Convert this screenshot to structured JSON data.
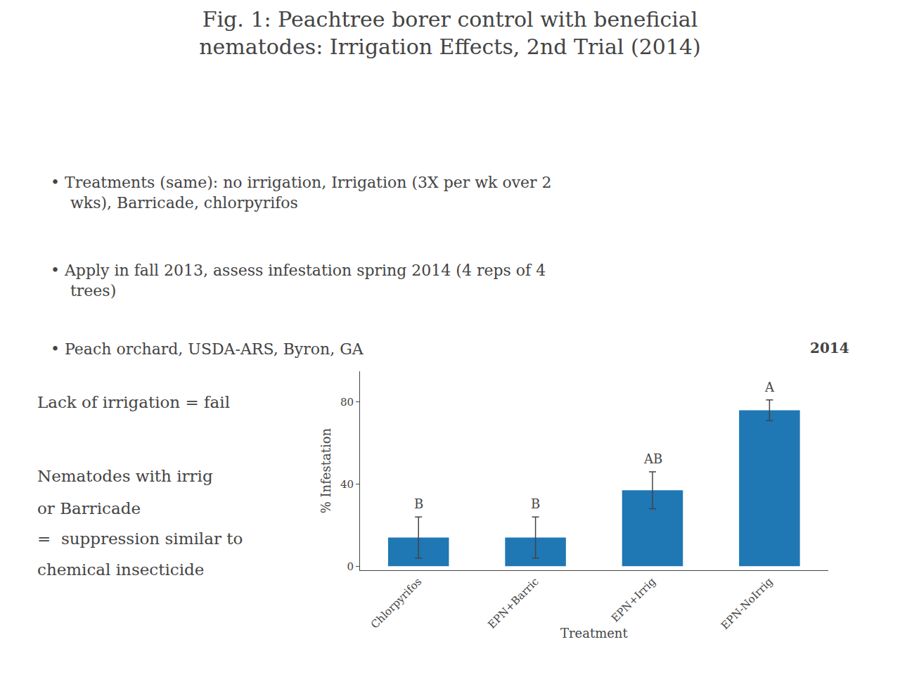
{
  "chart_data": {
    "type": "bar",
    "title": "Fig. 1: Peachtree borer control with beneficial\nnematodes: Irrigation Effects, 2nd Trial (2014)",
    "categories": [
      "Chlorpyrifos",
      "EPN+Barric",
      "EPN+Irrig",
      "EPN-NoIrrig"
    ],
    "values": [
      14.0,
      14.0,
      37.0,
      76.0
    ],
    "errors": [
      10.0,
      10.0,
      9.0,
      5.0
    ],
    "ylabel": "% Infestation",
    "xlabel": "Treatment",
    "ylim": [
      -2,
      95
    ],
    "yticks": [
      0,
      40,
      80
    ],
    "grid": false,
    "annotations": [
      {
        "text": "• Treatments (same): no irrigation, Irrigation (3X per wk over 2\n    wks), Barricade, chlorpyrifos"
      },
      {
        "text": "• Apply in fall 2013, assess infestation spring 2014 (4 reps of 4\n    trees)"
      },
      {
        "text": "• Peach orchard, USDA-ARS, Byron, GA"
      },
      {
        "text": "Lack of irrigation = fail"
      },
      {
        "text": "Nematodes with irrig"
      },
      {
        "text": "or Barricade"
      },
      {
        "text": "=  suppression similar to"
      },
      {
        "text": "chemical insecticide"
      },
      {
        "text": "2014"
      },
      {
        "text": "B",
        "category": "Chlorpyrifos"
      },
      {
        "text": "B",
        "category": "EPN+Barric"
      },
      {
        "text": "AB",
        "category": "EPN+Irrig"
      },
      {
        "text": "A",
        "category": "EPN-NoIrrig"
      }
    ]
  }
}
